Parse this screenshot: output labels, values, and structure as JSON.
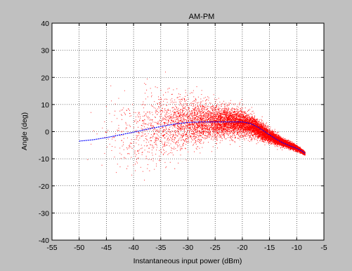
{
  "chart_data": {
    "type": "scatter",
    "title": "AM-PM",
    "xlabel": "Instantaneous input power (dBm)",
    "ylabel": "Angle (deg)",
    "xlim": [
      -55,
      -5
    ],
    "ylim": [
      -40,
      40
    ],
    "xticks": [
      -55,
      -50,
      -45,
      -40,
      -35,
      -30,
      -25,
      -20,
      -15,
      -10,
      -5
    ],
    "yticks": [
      -40,
      -30,
      -20,
      -10,
      0,
      10,
      20,
      30,
      40
    ],
    "grid": true,
    "legend": "none",
    "colors": {
      "scatter": "#ff0000",
      "fit": "#0000ff",
      "background": "#c0c0c0",
      "axes": "#ffffff"
    },
    "series": [
      {
        "kind": "scatter",
        "color": "#ff0000",
        "x_range": [
          -50,
          -8.5
        ],
        "mean_curve": [
          [
            -50,
            -3.5
          ],
          [
            -45,
            -2
          ],
          [
            -40,
            0
          ],
          [
            -35,
            2
          ],
          [
            -30,
            3.5
          ],
          [
            -25,
            3.8
          ],
          [
            -20,
            3.5
          ],
          [
            -17.5,
            1.5
          ],
          [
            -15,
            -1.5
          ],
          [
            -12.5,
            -4
          ],
          [
            -10,
            -6
          ],
          [
            -8.5,
            -8
          ]
        ],
        "spread_curve": [
          [
            -50,
            10
          ],
          [
            -45,
            12
          ],
          [
            -40,
            13
          ],
          [
            -35,
            11
          ],
          [
            -30,
            8
          ],
          [
            -25,
            5.5
          ],
          [
            -20,
            4
          ],
          [
            -17.5,
            3
          ],
          [
            -15,
            2
          ],
          [
            -12.5,
            1.2
          ],
          [
            -10,
            0.8
          ],
          [
            -8.5,
            0.5
          ]
        ],
        "approx_point_count": 12000
      },
      {
        "kind": "line",
        "color": "#0000ff",
        "x": [
          -50,
          -47.5,
          -45,
          -42.5,
          -40,
          -37.5,
          -35,
          -32.5,
          -30,
          -27.5,
          -25,
          -22.5,
          -20,
          -18.5,
          -17,
          -15.5,
          -14,
          -12.5,
          -11,
          -10,
          -9,
          -8.5
        ],
        "y": [
          -3.5,
          -3,
          -2.2,
          -1.2,
          -0.2,
          0.9,
          1.9,
          2.8,
          3.4,
          3.6,
          3.6,
          3.6,
          3.6,
          3.0,
          1.5,
          -0.5,
          -2.5,
          -4.2,
          -5.4,
          -6.2,
          -7.2,
          -8
        ]
      }
    ]
  }
}
